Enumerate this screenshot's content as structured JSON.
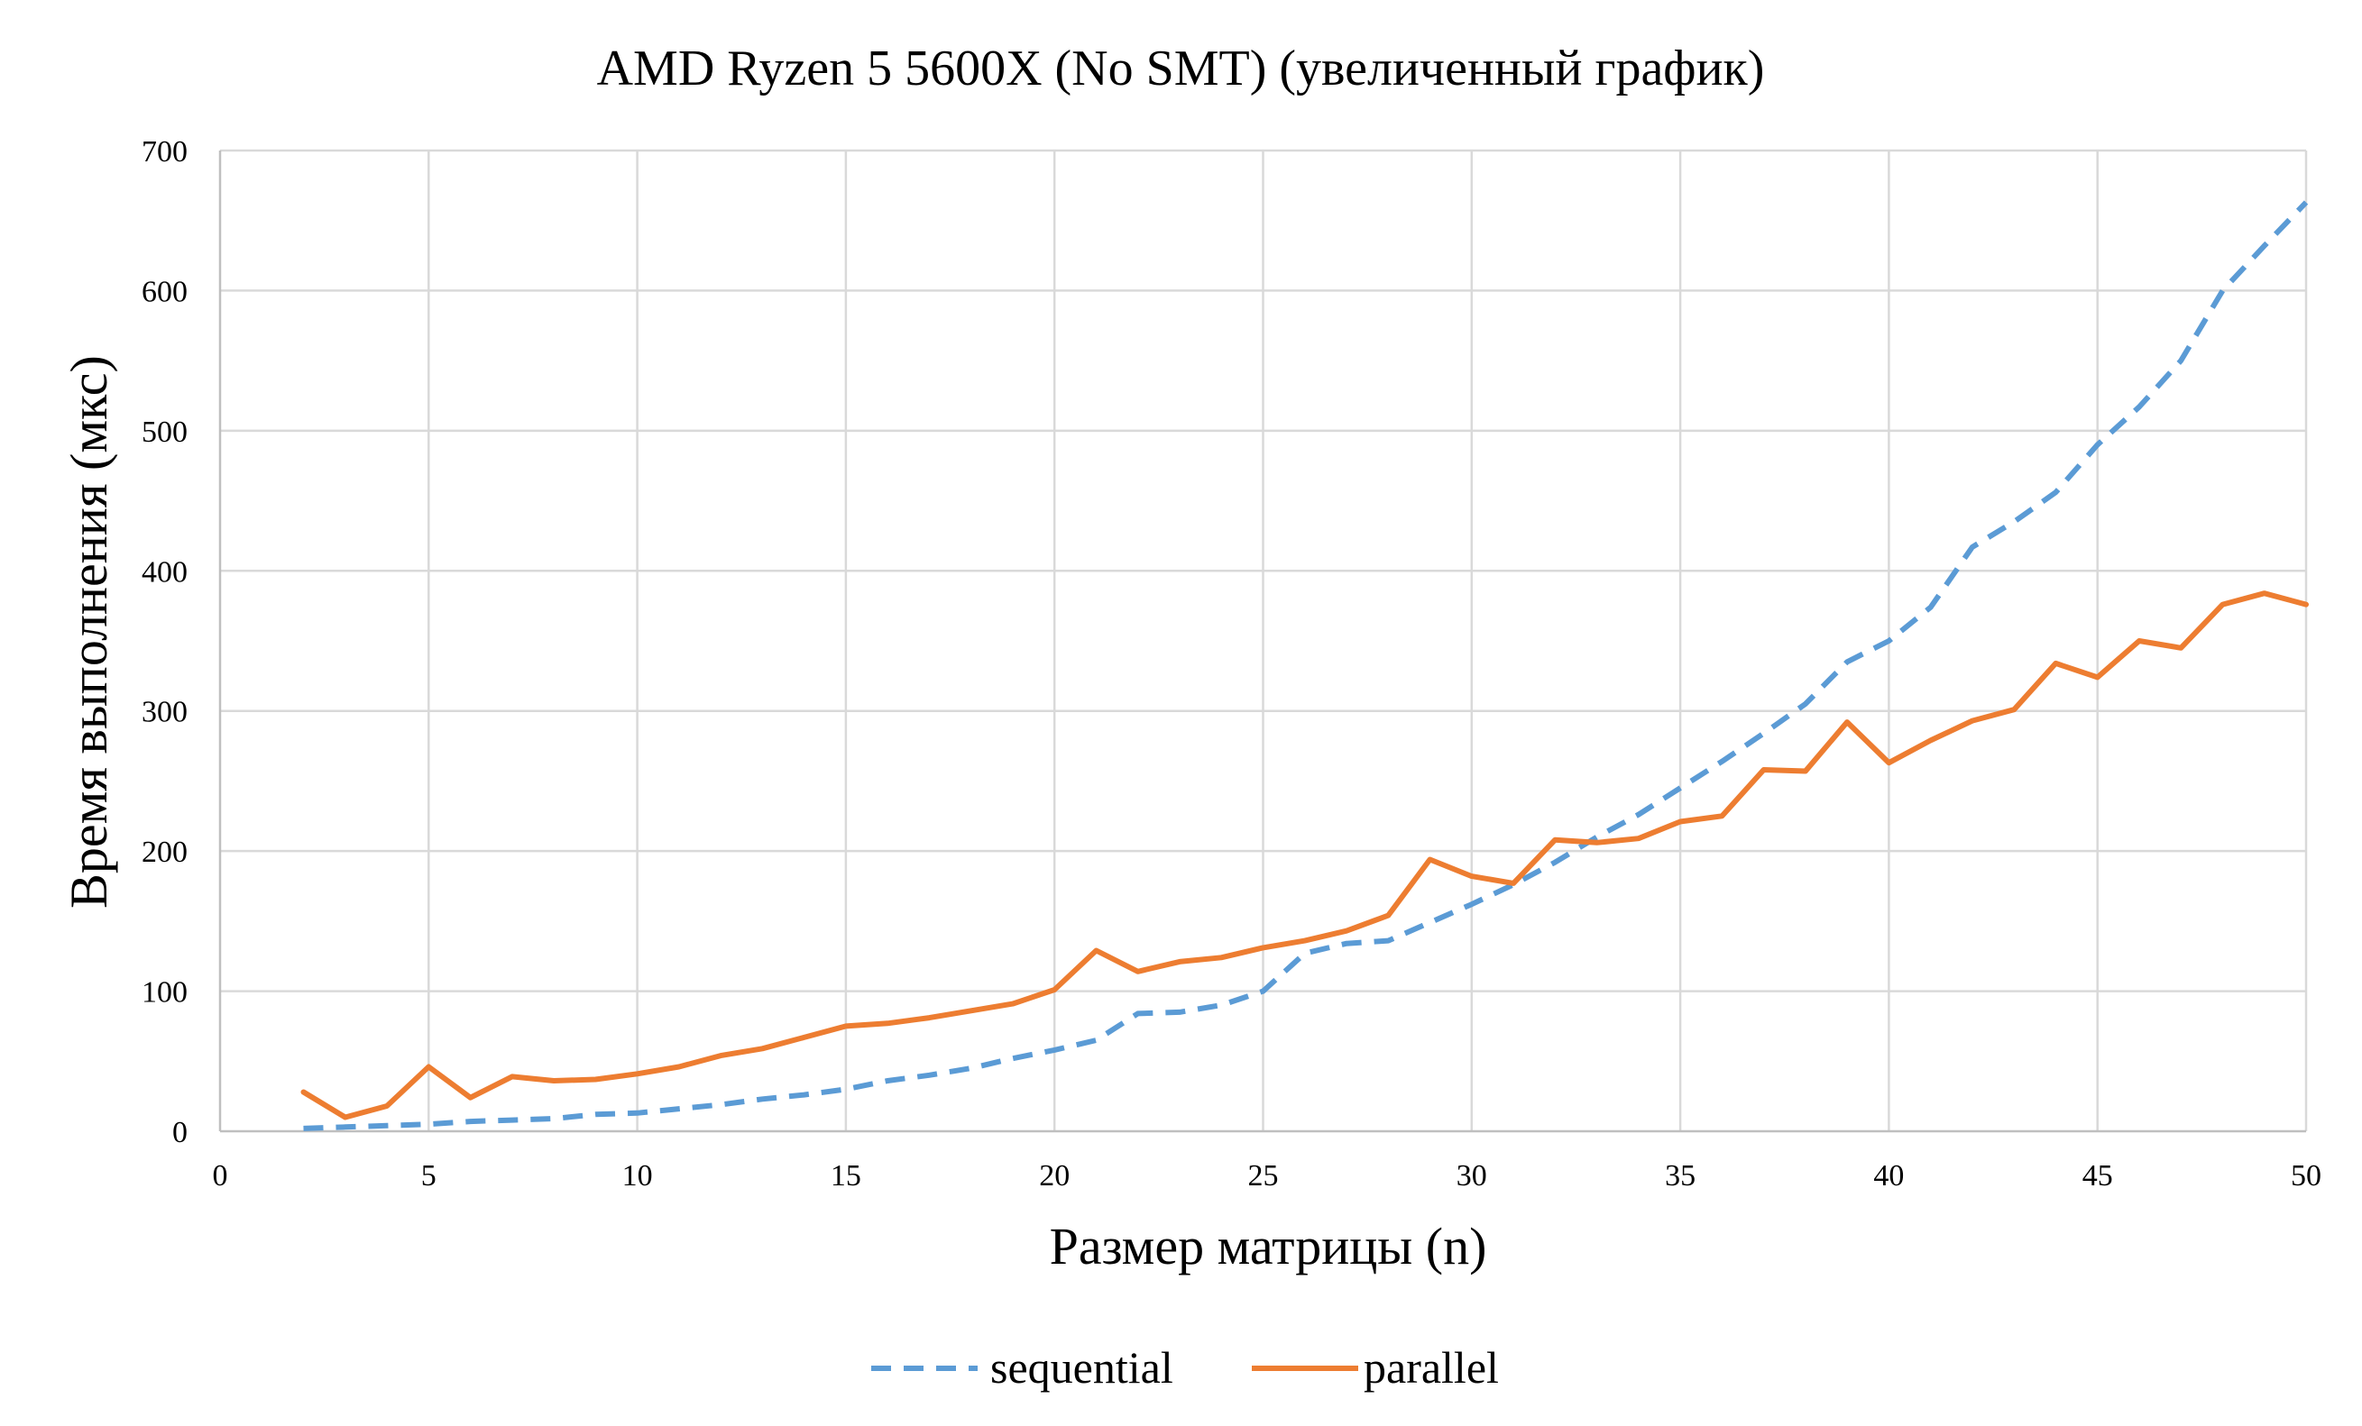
{
  "chart_data": {
    "type": "line",
    "title": "AMD Ryzen 5 5600X (No SMT) (увеличенный график)",
    "xlabel": "Размер матрицы (n)",
    "ylabel": "Время выполнения (мкс)",
    "xlim": [
      0,
      50
    ],
    "ylim": [
      0,
      700
    ],
    "xticks": [
      0,
      5,
      10,
      15,
      20,
      25,
      30,
      35,
      40,
      45,
      50
    ],
    "yticks": [
      0,
      100,
      200,
      300,
      400,
      500,
      600,
      700
    ],
    "xtick_labels": [
      "0",
      "5",
      "10",
      "15",
      "20",
      "25",
      "30",
      "35",
      "40",
      "45",
      "50"
    ],
    "ytick_labels": [
      "0",
      "100",
      "200",
      "300",
      "400",
      "500",
      "600",
      "700"
    ],
    "grid": true,
    "legend_position": "bottom",
    "x": [
      2,
      3,
      4,
      5,
      6,
      7,
      8,
      9,
      10,
      11,
      12,
      13,
      14,
      15,
      16,
      17,
      18,
      19,
      20,
      21,
      22,
      23,
      24,
      25,
      26,
      27,
      28,
      29,
      30,
      31,
      32,
      33,
      34,
      35,
      36,
      37,
      38,
      39,
      40,
      41,
      42,
      43,
      44,
      45,
      46,
      47,
      48,
      49,
      50
    ],
    "series": [
      {
        "name": "sequential",
        "color": "#5b9bd5",
        "style": "dashed",
        "values": [
          2,
          3,
          4,
          5,
          7,
          8,
          9,
          12,
          13,
          16,
          19,
          23,
          26,
          30,
          36,
          40,
          45,
          52,
          58,
          65,
          84,
          85,
          90,
          100,
          127,
          134,
          136,
          149,
          162,
          176,
          192,
          210,
          226,
          245,
          264,
          284,
          305,
          335,
          350,
          374,
          417,
          435,
          456,
          490,
          517,
          550,
          600,
          632,
          663
        ]
      },
      {
        "name": "parallel",
        "color": "#ed7d31",
        "style": "solid",
        "values": [
          28,
          10,
          18,
          46,
          24,
          39,
          36,
          37,
          41,
          46,
          54,
          59,
          67,
          75,
          77,
          81,
          86,
          91,
          101,
          129,
          114,
          121,
          124,
          131,
          136,
          143,
          154,
          194,
          182,
          177,
          208,
          206,
          209,
          221,
          225,
          258,
          257,
          292,
          263,
          279,
          293,
          301,
          334,
          324,
          350,
          345,
          376,
          384,
          376
        ]
      }
    ]
  }
}
